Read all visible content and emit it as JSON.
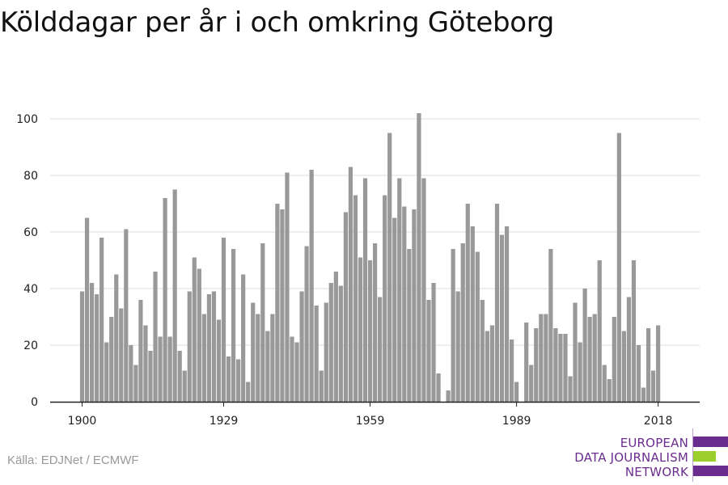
{
  "title": "Kölddagar per år i och omkring Göteborg",
  "source": "Källa: EDJNet / ECMWF",
  "logo": {
    "lines": [
      "EUROPEAN",
      "DATA JOURNALISM",
      "NETWORK"
    ],
    "colors": {
      "text": "#6b2c8f",
      "bar_purple": "#6b2c8f",
      "bar_green": "#9ccf2c"
    }
  },
  "colors": {
    "bar": "#999999",
    "grid": "#dddddd",
    "axis": "#222222"
  },
  "chart_data": {
    "type": "bar",
    "title": "Kölddagar per år i och omkring Göteborg",
    "xlabel": "",
    "ylabel": "",
    "x_start": 1900,
    "x_ticks": [
      1900,
      1929,
      1959,
      1989,
      2018
    ],
    "y_ticks": [
      0,
      20,
      40,
      60,
      80,
      100
    ],
    "ylim": [
      0,
      102
    ],
    "grid": true,
    "values": [
      39,
      65,
      42,
      38,
      58,
      21,
      30,
      45,
      33,
      61,
      20,
      13,
      36,
      27,
      18,
      46,
      23,
      72,
      23,
      75,
      18,
      11,
      39,
      51,
      47,
      31,
      38,
      39,
      29,
      58,
      16,
      54,
      15,
      45,
      7,
      35,
      31,
      56,
      25,
      31,
      70,
      68,
      81,
      23,
      21,
      39,
      55,
      82,
      34,
      11,
      35,
      42,
      46,
      41,
      67,
      83,
      73,
      51,
      79,
      50,
      56,
      37,
      73,
      95,
      65,
      79,
      69,
      54,
      68,
      102,
      79,
      36,
      42,
      10,
      0,
      4,
      54,
      39,
      56,
      70,
      62,
      53,
      36,
      25,
      27,
      70,
      59,
      62,
      22,
      7,
      0,
      28,
      13,
      26,
      31,
      31,
      54,
      26,
      24,
      24,
      9,
      35,
      21,
      40,
      30,
      31,
      50,
      13,
      8,
      30,
      95,
      25,
      37,
      50,
      20,
      5,
      26,
      11,
      27
    ]
  }
}
